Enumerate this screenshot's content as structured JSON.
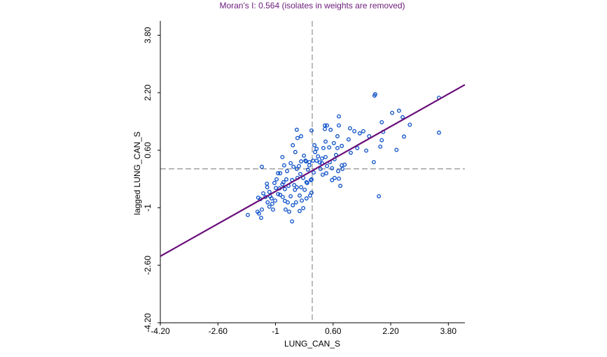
{
  "chart_data": {
    "type": "scatter",
    "title": "Moran's I: 0.564 (isolates in weights are removed)",
    "x_label": "LUNG_CAN_S",
    "y_label": "lagged LUNG_CAN_S",
    "xlim": [
      -4.2,
      4.26
    ],
    "ylim": [
      -4.2,
      4.1
    ],
    "xticks": [
      {
        "value": -4.2,
        "label": "-4.20"
      },
      {
        "value": -2.6,
        "label": "-2.60"
      },
      -1,
      {
        "value": 0.6,
        "label": "0.60"
      },
      {
        "value": 2.2,
        "label": "2.20"
      },
      {
        "value": 3.8,
        "label": "3.80"
      }
    ],
    "yticks": [
      {
        "value": -4.2,
        "label": "-4.20"
      },
      {
        "value": -2.6,
        "label": "-2.60"
      },
      -1,
      {
        "value": 0.6,
        "label": "0.60"
      },
      {
        "value": 2.2,
        "label": "2.20"
      },
      {
        "value": 3.8,
        "label": "3.80"
      }
    ],
    "x_mean": 0.02,
    "y_mean": 0.08,
    "regression": {
      "slope": 0.564,
      "intercept": 0.02,
      "color": "#6a0f7a"
    },
    "point_color": "#0a4ec8",
    "x": [
      3.54,
      3.54,
      1.77,
      1.75,
      2.43,
      2.24,
      2.53,
      2.73,
      2.57,
      2.36,
      1.95,
      1.99,
      1.95,
      1.73,
      1.87,
      1.91,
      1.6,
      1.44,
      1.34,
      1.52,
      1.19,
      1.27,
      1.07,
      1.03,
      1.09,
      0.76,
      0.76,
      0.72,
      0.72,
      0.84,
      0.62,
      0.68,
      0.64,
      0.84,
      0.74,
      0.86,
      0.76,
      0.8,
      0.64,
      0.57,
      0.37,
      0.43,
      0.53,
      0.37,
      0.39,
      0.49,
      0.39,
      0.51,
      0.43,
      0.29,
      0.23,
      0.25,
      0.31,
      0.18,
      0.14,
      0.08,
      0.0,
      0.04,
      0.14,
      0.06,
      -0.02,
      0.0,
      -0.04,
      -0.14,
      -0.23,
      -0.33,
      -0.27,
      -0.19,
      -0.14,
      -0.1,
      -0.06,
      -0.17,
      -0.21,
      -0.29,
      -0.41,
      -0.31,
      -0.39,
      -0.48,
      -0.41,
      -0.29,
      -0.33,
      -0.43,
      -0.52,
      -0.58,
      -0.66,
      -0.62,
      -0.54,
      -0.72,
      -0.8,
      -0.74,
      -0.64,
      -0.7,
      -0.81,
      -0.89,
      -0.93,
      -1.01,
      -1.09,
      -1.11,
      -1.17,
      -1.23,
      -1.24,
      -1.34,
      -1.28,
      -1.42,
      -1.48,
      -1.38,
      -1.46,
      -1.22,
      -1.17,
      -1.07,
      -0.97,
      -0.87,
      -0.76,
      -0.68,
      -0.58,
      -0.5,
      -0.45,
      -0.52,
      -0.39,
      -0.29,
      -0.41,
      -0.81,
      -0.93,
      -1.38,
      -1.03,
      -0.99,
      -0.78,
      -0.15,
      -0.06,
      0.0,
      -0.12,
      -0.23,
      -0.46,
      -0.74,
      -0.87,
      -1.15,
      -0.54,
      -0.35,
      0.1,
      0.29,
      0.92,
      0.33,
      0.57,
      0.41,
      -1.77,
      -1.5,
      -1.4
    ],
    "y": [
      2.06,
      1.09,
      2.16,
      2.12,
      1.7,
      1.64,
      1.52,
      1.31,
      0.98,
      0.61,
      0.88,
      1.11,
      1.38,
      0.27,
      -0.68,
      0.7,
      0.99,
      1.13,
      1.07,
      0.59,
      1.13,
      0.66,
      1.21,
      0.9,
      0.53,
      1.54,
      1.29,
      0.99,
      0.66,
      0.72,
      0.8,
      0.47,
      0.35,
      0.18,
      0.02,
      0.08,
      -0.19,
      -0.39,
      -0.17,
      0.1,
      1.29,
      1.29,
      1.17,
      1.19,
      0.84,
      0.68,
      0.41,
      0.27,
      0.16,
      0.37,
      0.26,
      0.08,
      -0.08,
      0.43,
      0.64,
      0.74,
      1.15,
      0.31,
      0.31,
      -0.02,
      -0.23,
      -0.58,
      -0.66,
      -0.74,
      -1.01,
      -1.09,
      -0.8,
      -0.5,
      -0.29,
      0.06,
      0.18,
      0.31,
      0.45,
      0.29,
      0.08,
      -0.06,
      -0.17,
      -0.37,
      -0.43,
      -0.43,
      -0.66,
      -0.85,
      -0.93,
      -0.68,
      -0.85,
      -1.11,
      -1.38,
      -1.05,
      -0.7,
      -0.48,
      -0.39,
      -0.21,
      -0.35,
      -0.46,
      -0.62,
      -0.8,
      -0.89,
      -0.74,
      -0.56,
      -0.43,
      -0.33,
      -0.6,
      -0.7,
      -0.76,
      -0.72,
      -1.05,
      -1.16,
      -0.85,
      -0.97,
      -1.05,
      -0.21,
      -0.04,
      0.18,
      0.02,
      0.24,
      0.14,
      0.55,
      0.74,
      0.94,
      0.99,
      1.17,
      0.41,
      -0.04,
      0.14,
      -0.31,
      -0.45,
      -0.29,
      0.29,
      0.27,
      -0.21,
      -0.31,
      -0.17,
      -0.5,
      -0.81,
      -0.64,
      -0.68,
      -0.23,
      0.16,
      0.55,
      0.24,
      0.2,
      0.66,
      -0.23,
      -0.04,
      -1.2,
      -1.11,
      -1.28
    ]
  }
}
